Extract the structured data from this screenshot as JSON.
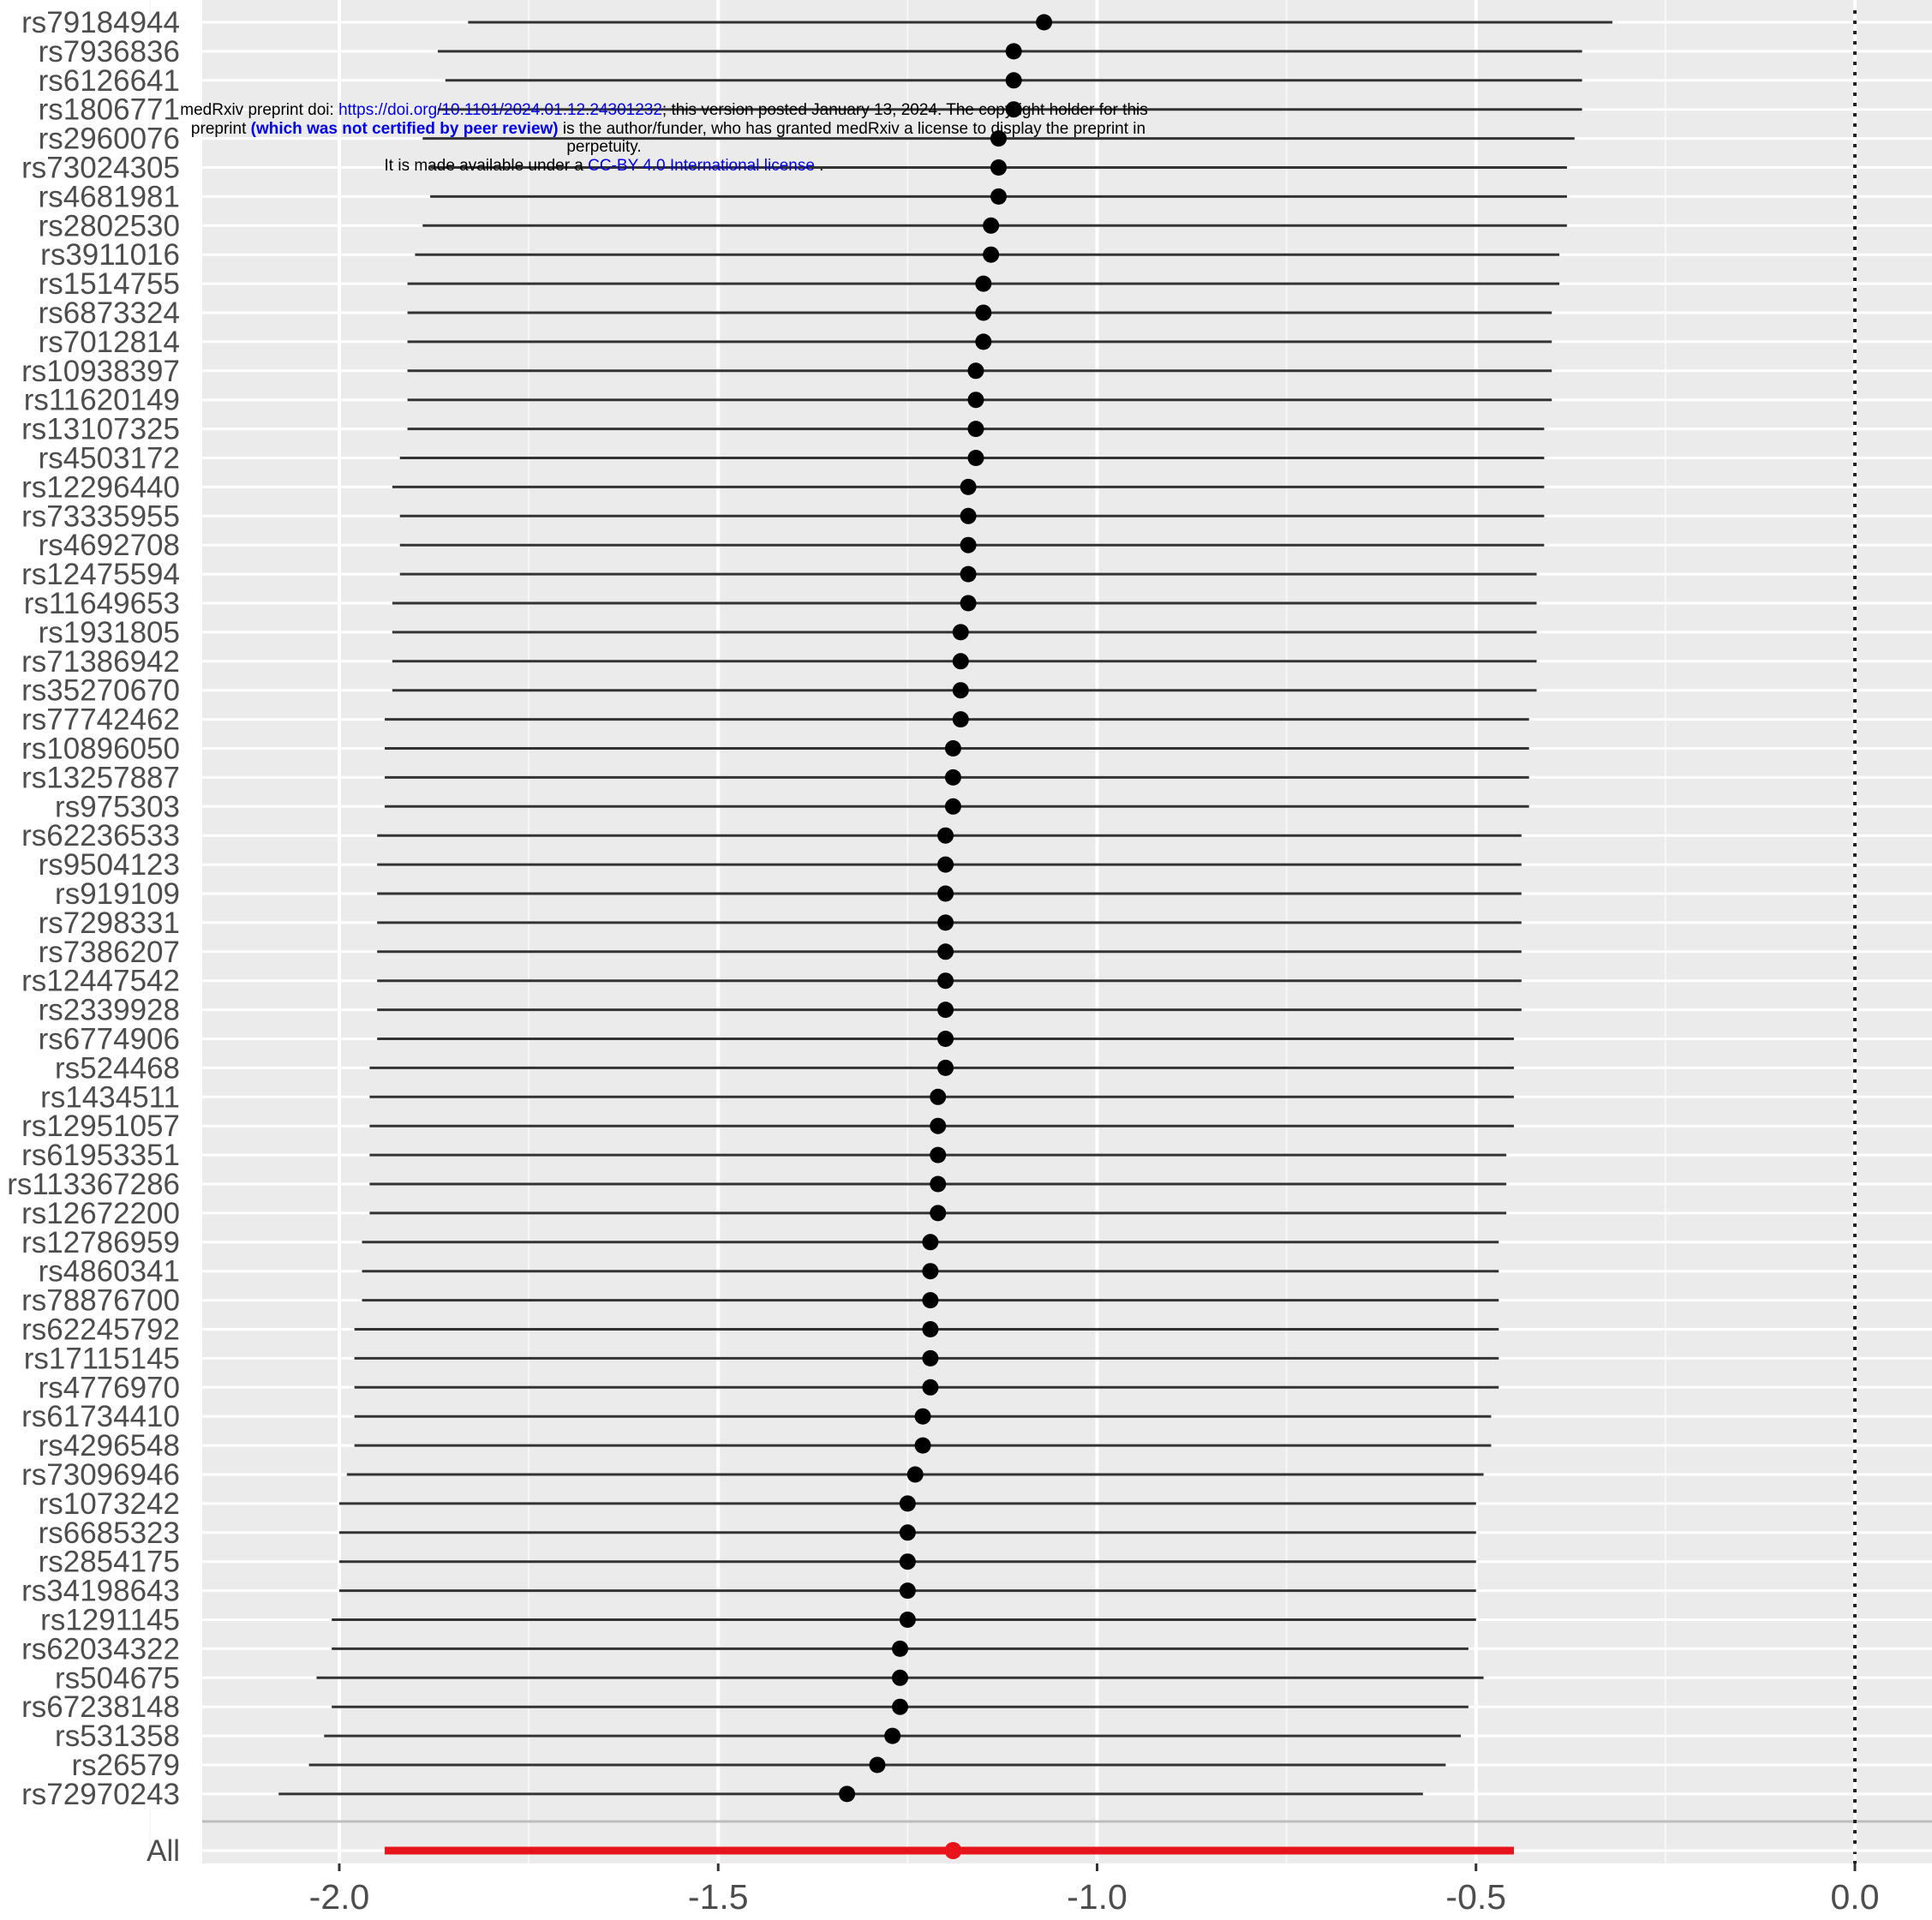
{
  "chart_data": {
    "type": "forest",
    "xlim": [
      -2.18,
      0.2
    ],
    "xticks": [
      -2.0,
      -1.5,
      -1.0,
      -0.5,
      0.0
    ],
    "xtick_labels": [
      "-2.0",
      "-1.5",
      "-1.0",
      "-0.5",
      "0.0"
    ],
    "reference_line": 0.0,
    "grid": true,
    "snps": [
      {
        "label": "rs79184944",
        "est": -1.07,
        "lo": -1.83,
        "hi": -0.32
      },
      {
        "label": "rs7936836",
        "est": -1.11,
        "lo": -1.87,
        "hi": -0.36
      },
      {
        "label": "rs6126641",
        "est": -1.11,
        "lo": -1.86,
        "hi": -0.36
      },
      {
        "label": "rs1806771",
        "est": -1.11,
        "lo": -1.87,
        "hi": -0.36
      },
      {
        "label": "rs2960076",
        "est": -1.13,
        "lo": -1.89,
        "hi": -0.37
      },
      {
        "label": "rs73024305",
        "est": -1.13,
        "lo": -1.88,
        "hi": -0.38
      },
      {
        "label": "rs4681981",
        "est": -1.13,
        "lo": -1.88,
        "hi": -0.38
      },
      {
        "label": "rs2802530",
        "est": -1.14,
        "lo": -1.89,
        "hi": -0.38
      },
      {
        "label": "rs3911016",
        "est": -1.14,
        "lo": -1.9,
        "hi": -0.39
      },
      {
        "label": "rs1514755",
        "est": -1.15,
        "lo": -1.91,
        "hi": -0.39
      },
      {
        "label": "rs6873324",
        "est": -1.15,
        "lo": -1.91,
        "hi": -0.4
      },
      {
        "label": "rs7012814",
        "est": -1.15,
        "lo": -1.91,
        "hi": -0.4
      },
      {
        "label": "rs10938397",
        "est": -1.16,
        "lo": -1.91,
        "hi": -0.4
      },
      {
        "label": "rs11620149",
        "est": -1.16,
        "lo": -1.91,
        "hi": -0.4
      },
      {
        "label": "rs13107325",
        "est": -1.16,
        "lo": -1.91,
        "hi": -0.41
      },
      {
        "label": "rs4503172",
        "est": -1.16,
        "lo": -1.92,
        "hi": -0.41
      },
      {
        "label": "rs12296440",
        "est": -1.17,
        "lo": -1.93,
        "hi": -0.41
      },
      {
        "label": "rs73335955",
        "est": -1.17,
        "lo": -1.92,
        "hi": -0.41
      },
      {
        "label": "rs4692708",
        "est": -1.17,
        "lo": -1.92,
        "hi": -0.41
      },
      {
        "label": "rs12475594",
        "est": -1.17,
        "lo": -1.92,
        "hi": -0.42
      },
      {
        "label": "rs11649653",
        "est": -1.17,
        "lo": -1.93,
        "hi": -0.42
      },
      {
        "label": "rs1931805",
        "est": -1.18,
        "lo": -1.93,
        "hi": -0.42
      },
      {
        "label": "rs71386942",
        "est": -1.18,
        "lo": -1.93,
        "hi": -0.42
      },
      {
        "label": "rs35270670",
        "est": -1.18,
        "lo": -1.93,
        "hi": -0.42
      },
      {
        "label": "rs77742462",
        "est": -1.18,
        "lo": -1.94,
        "hi": -0.43
      },
      {
        "label": "rs10896050",
        "est": -1.19,
        "lo": -1.94,
        "hi": -0.43
      },
      {
        "label": "rs13257887",
        "est": -1.19,
        "lo": -1.94,
        "hi": -0.43
      },
      {
        "label": "rs975303",
        "est": -1.19,
        "lo": -1.94,
        "hi": -0.43
      },
      {
        "label": "rs62236533",
        "est": -1.2,
        "lo": -1.95,
        "hi": -0.44
      },
      {
        "label": "rs9504123",
        "est": -1.2,
        "lo": -1.95,
        "hi": -0.44
      },
      {
        "label": "rs919109",
        "est": -1.2,
        "lo": -1.95,
        "hi": -0.44
      },
      {
        "label": "rs7298331",
        "est": -1.2,
        "lo": -1.95,
        "hi": -0.44
      },
      {
        "label": "rs7386207",
        "est": -1.2,
        "lo": -1.95,
        "hi": -0.44
      },
      {
        "label": "rs12447542",
        "est": -1.2,
        "lo": -1.95,
        "hi": -0.44
      },
      {
        "label": "rs2339928",
        "est": -1.2,
        "lo": -1.95,
        "hi": -0.44
      },
      {
        "label": "rs6774906",
        "est": -1.2,
        "lo": -1.95,
        "hi": -0.45
      },
      {
        "label": "rs524468",
        "est": -1.2,
        "lo": -1.96,
        "hi": -0.45
      },
      {
        "label": "rs1434511",
        "est": -1.21,
        "lo": -1.96,
        "hi": -0.45
      },
      {
        "label": "rs12951057",
        "est": -1.21,
        "lo": -1.96,
        "hi": -0.45
      },
      {
        "label": "rs61953351",
        "est": -1.21,
        "lo": -1.96,
        "hi": -0.46
      },
      {
        "label": "rs113367286",
        "est": -1.21,
        "lo": -1.96,
        "hi": -0.46
      },
      {
        "label": "rs12672200",
        "est": -1.21,
        "lo": -1.96,
        "hi": -0.46
      },
      {
        "label": "rs12786959",
        "est": -1.22,
        "lo": -1.97,
        "hi": -0.47
      },
      {
        "label": "rs4860341",
        "est": -1.22,
        "lo": -1.97,
        "hi": -0.47
      },
      {
        "label": "rs78876700",
        "est": -1.22,
        "lo": -1.97,
        "hi": -0.47
      },
      {
        "label": "rs62245792",
        "est": -1.22,
        "lo": -1.98,
        "hi": -0.47
      },
      {
        "label": "rs17115145",
        "est": -1.22,
        "lo": -1.98,
        "hi": -0.47
      },
      {
        "label": "rs4776970",
        "est": -1.22,
        "lo": -1.98,
        "hi": -0.47
      },
      {
        "label": "rs61734410",
        "est": -1.23,
        "lo": -1.98,
        "hi": -0.48
      },
      {
        "label": "rs4296548",
        "est": -1.23,
        "lo": -1.98,
        "hi": -0.48
      },
      {
        "label": "rs73096946",
        "est": -1.24,
        "lo": -1.99,
        "hi": -0.49
      },
      {
        "label": "rs1073242",
        "est": -1.25,
        "lo": -2.0,
        "hi": -0.5
      },
      {
        "label": "rs6685323",
        "est": -1.25,
        "lo": -2.0,
        "hi": -0.5
      },
      {
        "label": "rs2854175",
        "est": -1.25,
        "lo": -2.0,
        "hi": -0.5
      },
      {
        "label": "rs34198643",
        "est": -1.25,
        "lo": -2.0,
        "hi": -0.5
      },
      {
        "label": "rs1291145",
        "est": -1.25,
        "lo": -2.01,
        "hi": -0.5
      },
      {
        "label": "rs62034322",
        "est": -1.26,
        "lo": -2.01,
        "hi": -0.51
      },
      {
        "label": "rs504675",
        "est": -1.26,
        "lo": -2.03,
        "hi": -0.49
      },
      {
        "label": "rs67238148",
        "est": -1.26,
        "lo": -2.01,
        "hi": -0.51
      },
      {
        "label": "rs531358",
        "est": -1.27,
        "lo": -2.02,
        "hi": -0.52
      },
      {
        "label": "rs26579",
        "est": -1.29,
        "lo": -2.04,
        "hi": -0.54
      },
      {
        "label": "rs72970243",
        "est": -1.33,
        "lo": -2.08,
        "hi": -0.57
      }
    ],
    "overall": {
      "label": "All",
      "est": -1.19,
      "lo": -1.94,
      "hi": -0.45,
      "color": "#e8141b"
    }
  },
  "notice": {
    "prefix": "medRxiv preprint doi: ",
    "doi_link": "https://doi.org/10.1101/2024.01.12.24301232",
    "after_doi": "; this version posted January 13, 2024. The copyright holder for this",
    "preprint_word": "preprint ",
    "not_certified": "(which was not certified by peer review)",
    "after_certified": " is the author/funder, who has granted medRxiv a license to display the preprint in",
    "perpetuity": "perpetuity.",
    "made_available": "It is made available under a ",
    "license_link": "CC-BY 4.0 International license",
    "period": " ."
  }
}
